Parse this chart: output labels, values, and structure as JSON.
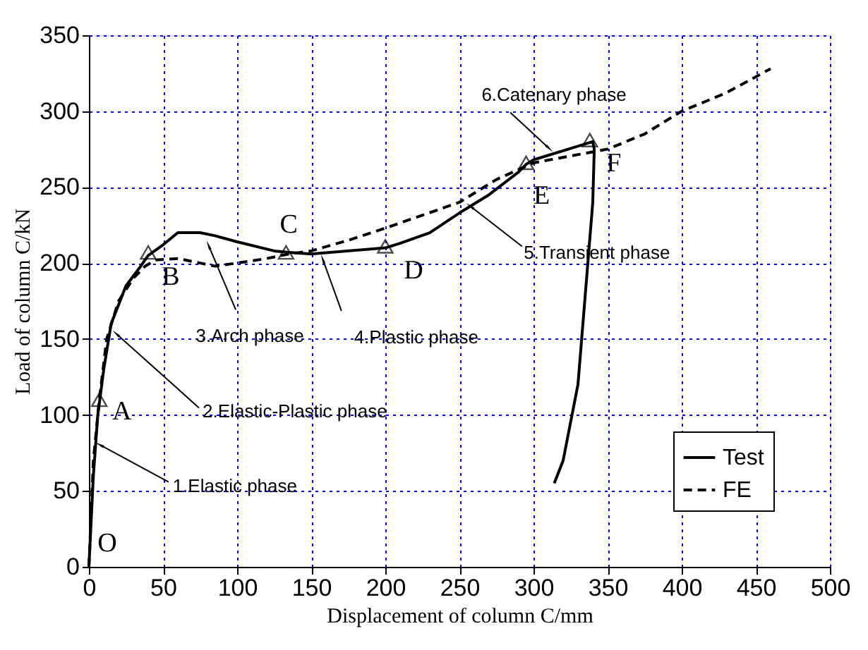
{
  "chart_data": {
    "type": "line",
    "xlabel": "Displacement of column C/mm",
    "ylabel": "Load of column C/kN",
    "xlim": [
      0,
      500
    ],
    "ylim": [
      0,
      350
    ],
    "xticks": [
      0,
      50,
      100,
      150,
      200,
      250,
      300,
      350,
      400,
      450,
      500
    ],
    "yticks": [
      0,
      50,
      100,
      150,
      200,
      250,
      300,
      350
    ],
    "grid": true,
    "legend": "bottom right",
    "series": [
      {
        "name": "Test",
        "color": "#000000",
        "line_style": "solid",
        "x": [
          0,
          3,
          6,
          10,
          15,
          25,
          35,
          40,
          50,
          60,
          75,
          85,
          100,
          125,
          135,
          150,
          200,
          210,
          230,
          250,
          270,
          290,
          295,
          300,
          340,
          341,
          340,
          335,
          330,
          320,
          314
        ],
        "values": [
          0,
          60,
          100,
          130,
          160,
          185,
          198,
          205,
          212,
          220,
          220,
          218,
          214,
          208,
          207,
          206,
          210,
          213,
          220,
          233,
          245,
          260,
          265,
          268,
          280,
          275,
          240,
          180,
          120,
          70,
          55
        ]
      },
      {
        "name": "FE",
        "color": "#000000",
        "line_style": "dashed",
        "x": [
          0,
          3,
          7,
          12,
          20,
          30,
          38,
          45,
          60,
          75,
          85,
          100,
          120,
          135,
          150,
          175,
          200,
          250,
          275,
          300,
          350,
          375,
          400,
          430,
          460
        ],
        "values": [
          0,
          70,
          110,
          150,
          175,
          190,
          198,
          202,
          203,
          200,
          198,
          200,
          203,
          206,
          208,
          215,
          223,
          240,
          255,
          266,
          275,
          285,
          300,
          312,
          328
        ]
      },
      {
        "type": "scatter",
        "marker": "triangle",
        "color": "#000000",
        "x": [
          7,
          40,
          133,
          200,
          295,
          338
        ],
        "values": [
          110,
          207,
          207,
          211,
          266,
          281
        ]
      }
    ],
    "annotations": [
      {
        "text": "O",
        "x": 0,
        "y": 0
      },
      {
        "text": "A",
        "x": 7,
        "y": 110
      },
      {
        "text": "B",
        "x": 40,
        "y": 207
      },
      {
        "text": "C",
        "x": 133,
        "y": 207
      },
      {
        "text": "D",
        "x": 200,
        "y": 211
      },
      {
        "text": "E",
        "x": 295,
        "y": 266
      },
      {
        "text": "F",
        "x": 338,
        "y": 281
      },
      {
        "text": "1.Elastic phase",
        "x": 8,
        "y": 80
      },
      {
        "text": "2.Elastic-Plastic phase",
        "x": 19,
        "y": 153
      },
      {
        "text": "3.Arch phase",
        "x": 81,
        "y": 211
      },
      {
        "text": "4.Plastic phase",
        "x": 158,
        "y": 202
      },
      {
        "text": "5.Transient phase",
        "x": 258,
        "y": 237
      },
      {
        "text": "6.Catenary phase",
        "x": 310,
        "y": 276
      }
    ]
  }
}
